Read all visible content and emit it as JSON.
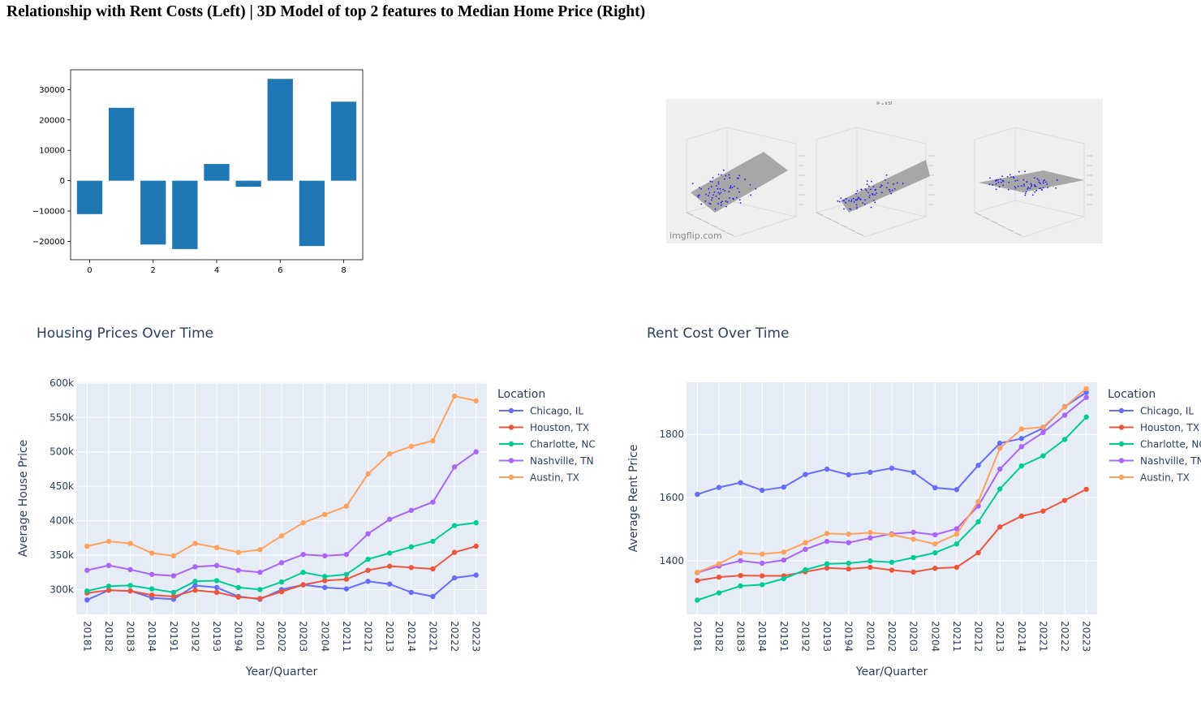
{
  "page": {
    "title": "Relationship with Rent Costs (Left) | 3D Model of top 2 features to Median Home Price (Right)"
  },
  "model_image": {
    "caption": "R² = 0.57",
    "watermark": "imgflip.com",
    "point_color": "#1a1aff",
    "plane_color": "#9a9a9a"
  },
  "chart_data": [
    {
      "type": "bar",
      "title": "",
      "xlabel": "",
      "ylabel": "",
      "categories": [
        0,
        1,
        2,
        3,
        4,
        5,
        6,
        7,
        8
      ],
      "values": [
        -11000,
        24000,
        -21000,
        -22500,
        5500,
        -2000,
        33500,
        -21500,
        26000
      ],
      "xticks": [
        0,
        2,
        4,
        6,
        8
      ],
      "yticks": [
        -20000,
        -10000,
        0,
        10000,
        20000,
        30000
      ],
      "ylim": [
        -26000,
        36500
      ],
      "xlim": [
        -0.6,
        8.6
      ],
      "color": "#1f77b4",
      "grid": false
    },
    {
      "type": "line",
      "title": "Housing Prices Over Time",
      "xlabel": "Year/Quarter",
      "ylabel": "Average House Price",
      "legend_title": "Location",
      "legend_position": "right",
      "x": [
        "20181",
        "20182",
        "20183",
        "20184",
        "20191",
        "20192",
        "20193",
        "20194",
        "20201",
        "20202",
        "20203",
        "20204",
        "20211",
        "20212",
        "20213",
        "20214",
        "20221",
        "20222",
        "20223"
      ],
      "yticks": [
        300000,
        350000,
        400000,
        450000,
        500000,
        550000,
        600000
      ],
      "ytick_labels": [
        "300k",
        "350k",
        "400k",
        "450k",
        "500k",
        "550k",
        "600k"
      ],
      "ylim": [
        264000,
        601000
      ],
      "series": [
        {
          "name": "Chicago, IL",
          "color": "#636efa",
          "values": [
            285000,
            299000,
            298000,
            288000,
            286000,
            306000,
            303000,
            290000,
            286000,
            300000,
            307000,
            303000,
            301000,
            312000,
            308000,
            296000,
            290000,
            317000,
            321000
          ]
        },
        {
          "name": "Houston, TX",
          "color": "#ef553b",
          "values": [
            295000,
            299000,
            298000,
            292000,
            290000,
            299000,
            296000,
            289000,
            287000,
            297000,
            307000,
            313000,
            315000,
            328000,
            334000,
            332000,
            330000,
            354000,
            363000
          ]
        },
        {
          "name": "Charlotte, NC",
          "color": "#00cc96",
          "values": [
            298000,
            305000,
            306000,
            301000,
            296000,
            312000,
            313000,
            303000,
            300000,
            311000,
            325000,
            319000,
            322000,
            344000,
            353000,
            362000,
            370000,
            393000,
            397000
          ]
        },
        {
          "name": "Nashville, TN",
          "color": "#ab63fa",
          "values": [
            328000,
            335000,
            329000,
            322000,
            320000,
            333000,
            335000,
            328000,
            325000,
            339000,
            351000,
            349000,
            351000,
            381000,
            402000,
            415000,
            427000,
            478000,
            500000
          ]
        },
        {
          "name": "Austin, TX",
          "color": "#ffa15a",
          "values": [
            363000,
            370000,
            367000,
            353000,
            349000,
            367000,
            361000,
            354000,
            358000,
            378000,
            397000,
            409000,
            421000,
            468000,
            497000,
            508000,
            516000,
            581000,
            574000
          ]
        }
      ]
    },
    {
      "type": "line",
      "title": "Rent Cost Over Time",
      "xlabel": "Year/Quarter",
      "ylabel": "Average Rent Price",
      "legend_title": "Location",
      "legend_position": "right",
      "x": [
        "20181",
        "20182",
        "20183",
        "20184",
        "20191",
        "20192",
        "20193",
        "20194",
        "20201",
        "20202",
        "20203",
        "20204",
        "20211",
        "20212",
        "20213",
        "20214",
        "20221",
        "20222",
        "20223"
      ],
      "yticks": [
        1400,
        1600,
        1800
      ],
      "ytick_labels": [
        "1400",
        "1600",
        "1800"
      ],
      "ylim": [
        1230,
        1965
      ],
      "series": [
        {
          "name": "Chicago, IL",
          "color": "#636efa",
          "values": [
            1610,
            1632,
            1647,
            1623,
            1633,
            1673,
            1690,
            1672,
            1680,
            1693,
            1680,
            1631,
            1625,
            1702,
            1772,
            1787,
            1820,
            1888,
            1933
          ]
        },
        {
          "name": "Houston, TX",
          "color": "#ef553b",
          "values": [
            1337,
            1348,
            1353,
            1352,
            1352,
            1365,
            1377,
            1374,
            1379,
            1370,
            1364,
            1376,
            1379,
            1425,
            1507,
            1541,
            1557,
            1591,
            1626
          ]
        },
        {
          "name": "Charlotte, NC",
          "color": "#00cc96",
          "values": [
            1275,
            1298,
            1320,
            1324,
            1343,
            1371,
            1390,
            1392,
            1399,
            1395,
            1410,
            1425,
            1453,
            1523,
            1627,
            1700,
            1732,
            1784,
            1855
          ]
        },
        {
          "name": "Nashville, TN",
          "color": "#ab63fa",
          "values": [
            1362,
            1383,
            1400,
            1392,
            1402,
            1436,
            1461,
            1457,
            1472,
            1485,
            1490,
            1482,
            1501,
            1573,
            1690,
            1761,
            1806,
            1861,
            1917
          ]
        },
        {
          "name": "Austin, TX",
          "color": "#ffa15a",
          "values": [
            1363,
            1390,
            1425,
            1421,
            1427,
            1457,
            1486,
            1484,
            1489,
            1482,
            1468,
            1453,
            1484,
            1587,
            1756,
            1817,
            1823,
            1887,
            1945
          ]
        }
      ]
    }
  ]
}
